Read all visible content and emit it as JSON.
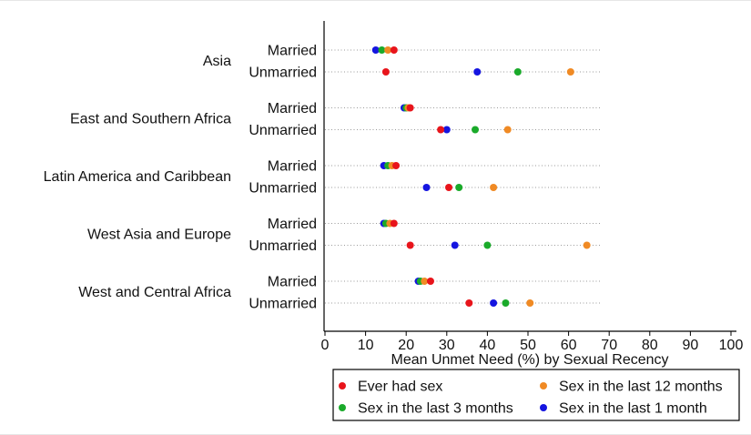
{
  "chart_data": {
    "type": "scatter",
    "xlabel": "Mean Unmet Need (%) by Sexual Recency",
    "xlim": [
      0,
      100
    ],
    "xticks": [
      0,
      10,
      20,
      30,
      40,
      50,
      60,
      70,
      80,
      90,
      100
    ],
    "grid": "dotted horizontal guide per row",
    "legend_position": "bottom",
    "groups": [
      {
        "name": "Asia",
        "rows": [
          {
            "label": "Married",
            "values": {
              "ever": 17,
              "m12": 15.5,
              "m3": 14,
              "m1": 12.5
            }
          },
          {
            "label": "Unmarried",
            "values": {
              "ever": 15,
              "m12": 60.5,
              "m3": 47.5,
              "m1": 37.5
            }
          }
        ]
      },
      {
        "name": "East and Southern Africa",
        "rows": [
          {
            "label": "Married",
            "values": {
              "ever": 21,
              "m12": 20.5,
              "m3": 20,
              "m1": 19.5
            }
          },
          {
            "label": "Unmarried",
            "values": {
              "ever": 28.5,
              "m12": 45,
              "m3": 37,
              "m1": 30
            }
          }
        ]
      },
      {
        "name": "Latin America and Caribbean",
        "rows": [
          {
            "label": "Married",
            "values": {
              "ever": 17.5,
              "m12": 16.5,
              "m3": 15.5,
              "m1": 14.5
            }
          },
          {
            "label": "Unmarried",
            "values": {
              "ever": 30.5,
              "m12": 41.5,
              "m3": 33,
              "m1": 25
            }
          }
        ]
      },
      {
        "name": "West Asia and Europe",
        "rows": [
          {
            "label": "Married",
            "values": {
              "ever": 17,
              "m12": 16,
              "m3": 15,
              "m1": 14.5
            }
          },
          {
            "label": "Unmarried",
            "values": {
              "ever": 21,
              "m12": 64.5,
              "m3": 40,
              "m1": 32
            }
          }
        ]
      },
      {
        "name": "West and Central Africa",
        "rows": [
          {
            "label": "Married",
            "values": {
              "ever": 26,
              "m12": 24.5,
              "m3": 23.5,
              "m1": 23
            }
          },
          {
            "label": "Unmarried",
            "values": {
              "ever": 35.5,
              "m12": 50.5,
              "m3": 44.5,
              "m1": 41.5
            }
          }
        ]
      }
    ],
    "series": [
      {
        "key": "ever",
        "name": "Ever had sex",
        "color": "#e8141b"
      },
      {
        "key": "m12",
        "name": "Sex in the last 12 months",
        "color": "#f08a24"
      },
      {
        "key": "m3",
        "name": "Sex in the last 3 months",
        "color": "#1aaa2a"
      },
      {
        "key": "m1",
        "name": "Sex in the last 1 month",
        "color": "#1515e0"
      }
    ],
    "draw_order": [
      "m1",
      "m3",
      "m12",
      "ever"
    ]
  }
}
